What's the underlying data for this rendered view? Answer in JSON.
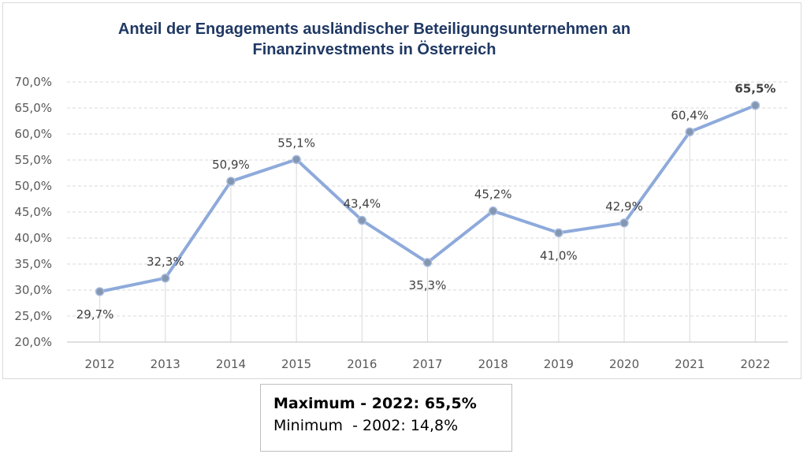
{
  "chart_data": {
    "type": "line",
    "title": "Anteil der Engagements ausländischer Beteiligungsunternehmen an\nFinanzinvestments in Österreich",
    "categories": [
      "2012",
      "2013",
      "2014",
      "2015",
      "2016",
      "2017",
      "2018",
      "2019",
      "2020",
      "2021",
      "2022"
    ],
    "values": [
      29.7,
      32.3,
      50.9,
      55.1,
      43.4,
      35.3,
      45.2,
      41.0,
      42.9,
      60.4,
      65.5
    ],
    "data_labels": [
      "29,7%",
      "32,3%",
      "50,9%",
      "55,1%",
      "43,4%",
      "35,3%",
      "45,2%",
      "41,0%",
      "42,9%",
      "60,4%",
      "65,5%"
    ],
    "label_positions": [
      "below",
      "above",
      "above",
      "above",
      "above",
      "below",
      "above",
      "below",
      "above",
      "above",
      "above"
    ],
    "highlight_index": 10,
    "y_ticks": [
      "20,0%",
      "25,0%",
      "30,0%",
      "35,0%",
      "40,0%",
      "45,0%",
      "50,0%",
      "55,0%",
      "60,0%",
      "65,0%",
      "70,0%"
    ],
    "ylim": [
      20,
      70
    ],
    "y_step": 5,
    "grid": true,
    "line_color": "#8eaadb",
    "marker_color": "#8497b0",
    "title_color": "#1f3864"
  },
  "info_box": {
    "maximum": "Maximum - 2022: 65,5%",
    "minimum": "Minimum  - 2002: 14,8%"
  }
}
